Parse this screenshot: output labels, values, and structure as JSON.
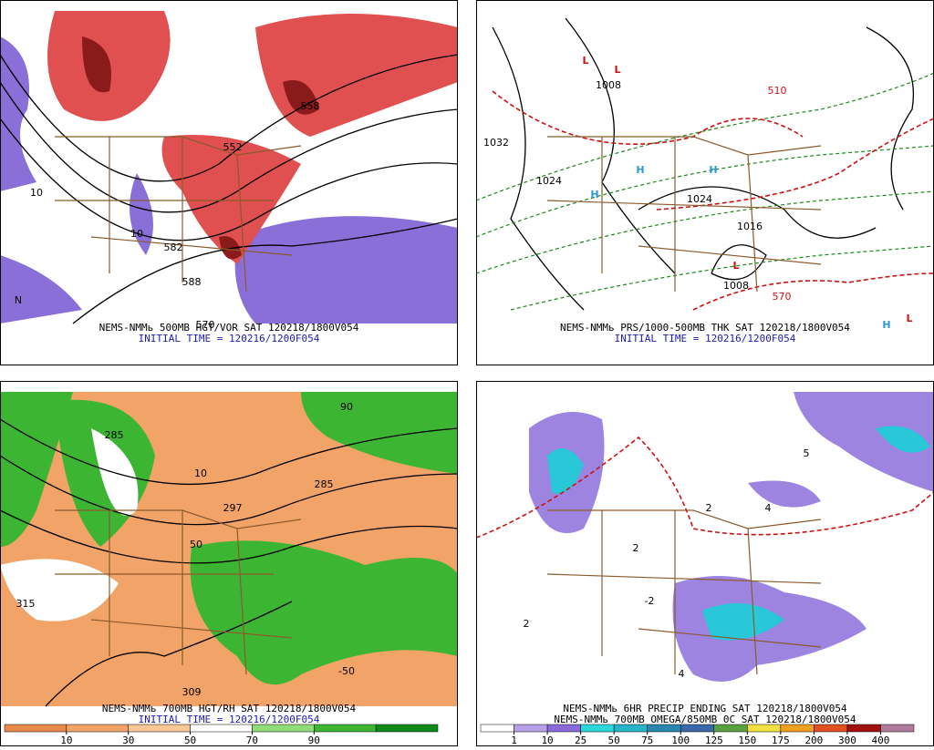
{
  "panels": [
    {
      "captions": [
        "NEMS-NMMь 500MB HGT/VOR SAT 120218/1800V054",
        "INITIAL TIME = 120216/1200F054"
      ],
      "labels": [
        "552",
        "588",
        "570",
        "10",
        "10",
        "N",
        "558",
        "582"
      ]
    },
    {
      "captions": [
        "NEMS-NMMь PRS/1000-500MB THK SAT 120218/1800V054",
        "INITIAL TIME = 120216/1200F054"
      ],
      "labels": [
        "L",
        "L",
        "H",
        "H",
        "H",
        "L",
        "L",
        "H",
        "1032",
        "1024",
        "1008",
        "1024",
        "1016",
        "510",
        "570",
        "1008"
      ]
    },
    {
      "captions": [
        "NEMS-NMMь 700MB HGT/RH SAT 120218/1800V054",
        "INITIAL TIME = 120216/1200F054"
      ],
      "labels": [
        "315",
        "285",
        "309",
        "297",
        "285",
        "10",
        "50",
        "-50",
        "90"
      ]
    },
    {
      "captions": [
        "NEMS-NMMь 6HR PRECIP ENDING SAT 120218/1800V054",
        "NEMS-NMMь 700MB OMEGA/850MB 0C SAT 120218/1800V054"
      ],
      "labels": [
        "2",
        "4",
        "-2",
        "5",
        "2",
        "4",
        "2"
      ]
    }
  ],
  "rh_scale": {
    "ticks": [
      10,
      30,
      50,
      70,
      90
    ],
    "colors": [
      "#e8894c",
      "#f2a468",
      "#f8c795",
      "#ffffff",
      "#8fdc78",
      "#3cb632",
      "#0f8a1a"
    ]
  },
  "precip_scale": {
    "ticks": [
      1,
      10,
      25,
      50,
      75,
      100,
      125,
      150,
      175,
      200,
      300,
      400
    ],
    "colors": [
      "#ffffff",
      "#b8a0e8",
      "#8a6ad8",
      "#2ad8d8",
      "#28b4c8",
      "#2a88b0",
      "#3a68a8",
      "#5aa040",
      "#f0e040",
      "#f0a020",
      "#e05020",
      "#a01010",
      "#b07a9a"
    ]
  }
}
